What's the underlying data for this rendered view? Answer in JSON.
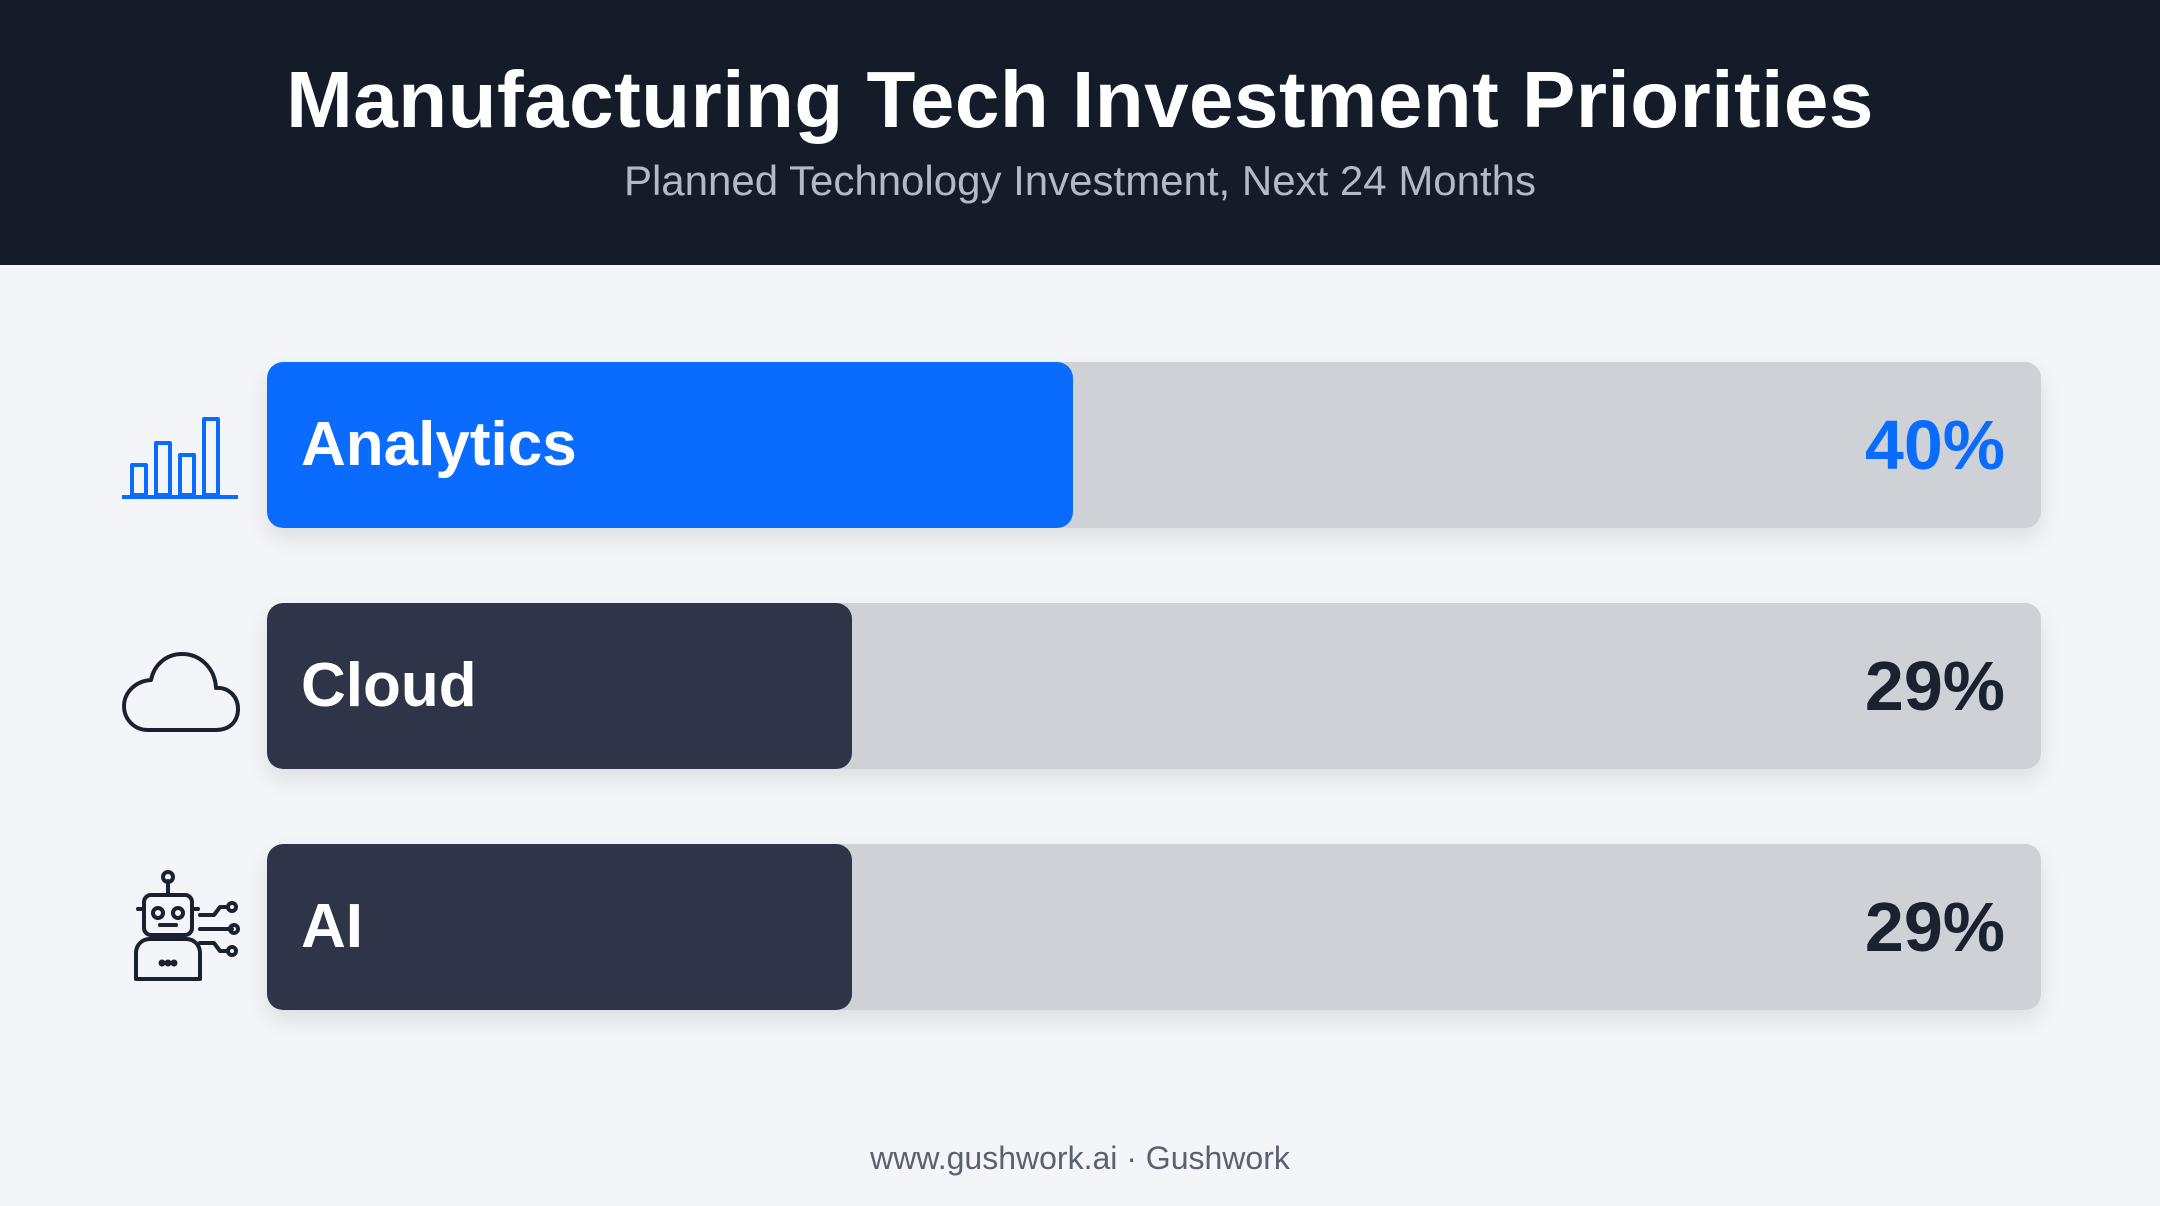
{
  "header": {
    "title": "Manufacturing Tech Investment Priorities",
    "subtitle": "Planned Technology Investment, Next 24 Months"
  },
  "footer": {
    "text": "www.gushwork.ai · Gushwork"
  },
  "colors": {
    "highlight": "#0a6cff",
    "dark_bar": "#2e3549",
    "track": "#ced1d6",
    "dark_text": "#1b2130",
    "header_bg": "#141b29"
  },
  "chart_data": {
    "type": "bar",
    "orientation": "horizontal",
    "title": "Manufacturing Tech Investment Priorities",
    "subtitle": "Planned Technology Investment, Next 24 Months",
    "categories": [
      "Analytics",
      "Cloud",
      "AI"
    ],
    "values": [
      40,
      29,
      29
    ],
    "value_labels": [
      "40%",
      "29%",
      "29%"
    ],
    "icons": [
      "bar-chart-icon",
      "cloud-icon",
      "robot-icon"
    ],
    "highlighted": [
      true,
      false,
      false
    ],
    "xlim": [
      0,
      88
    ],
    "grid": false,
    "legend": "none"
  }
}
